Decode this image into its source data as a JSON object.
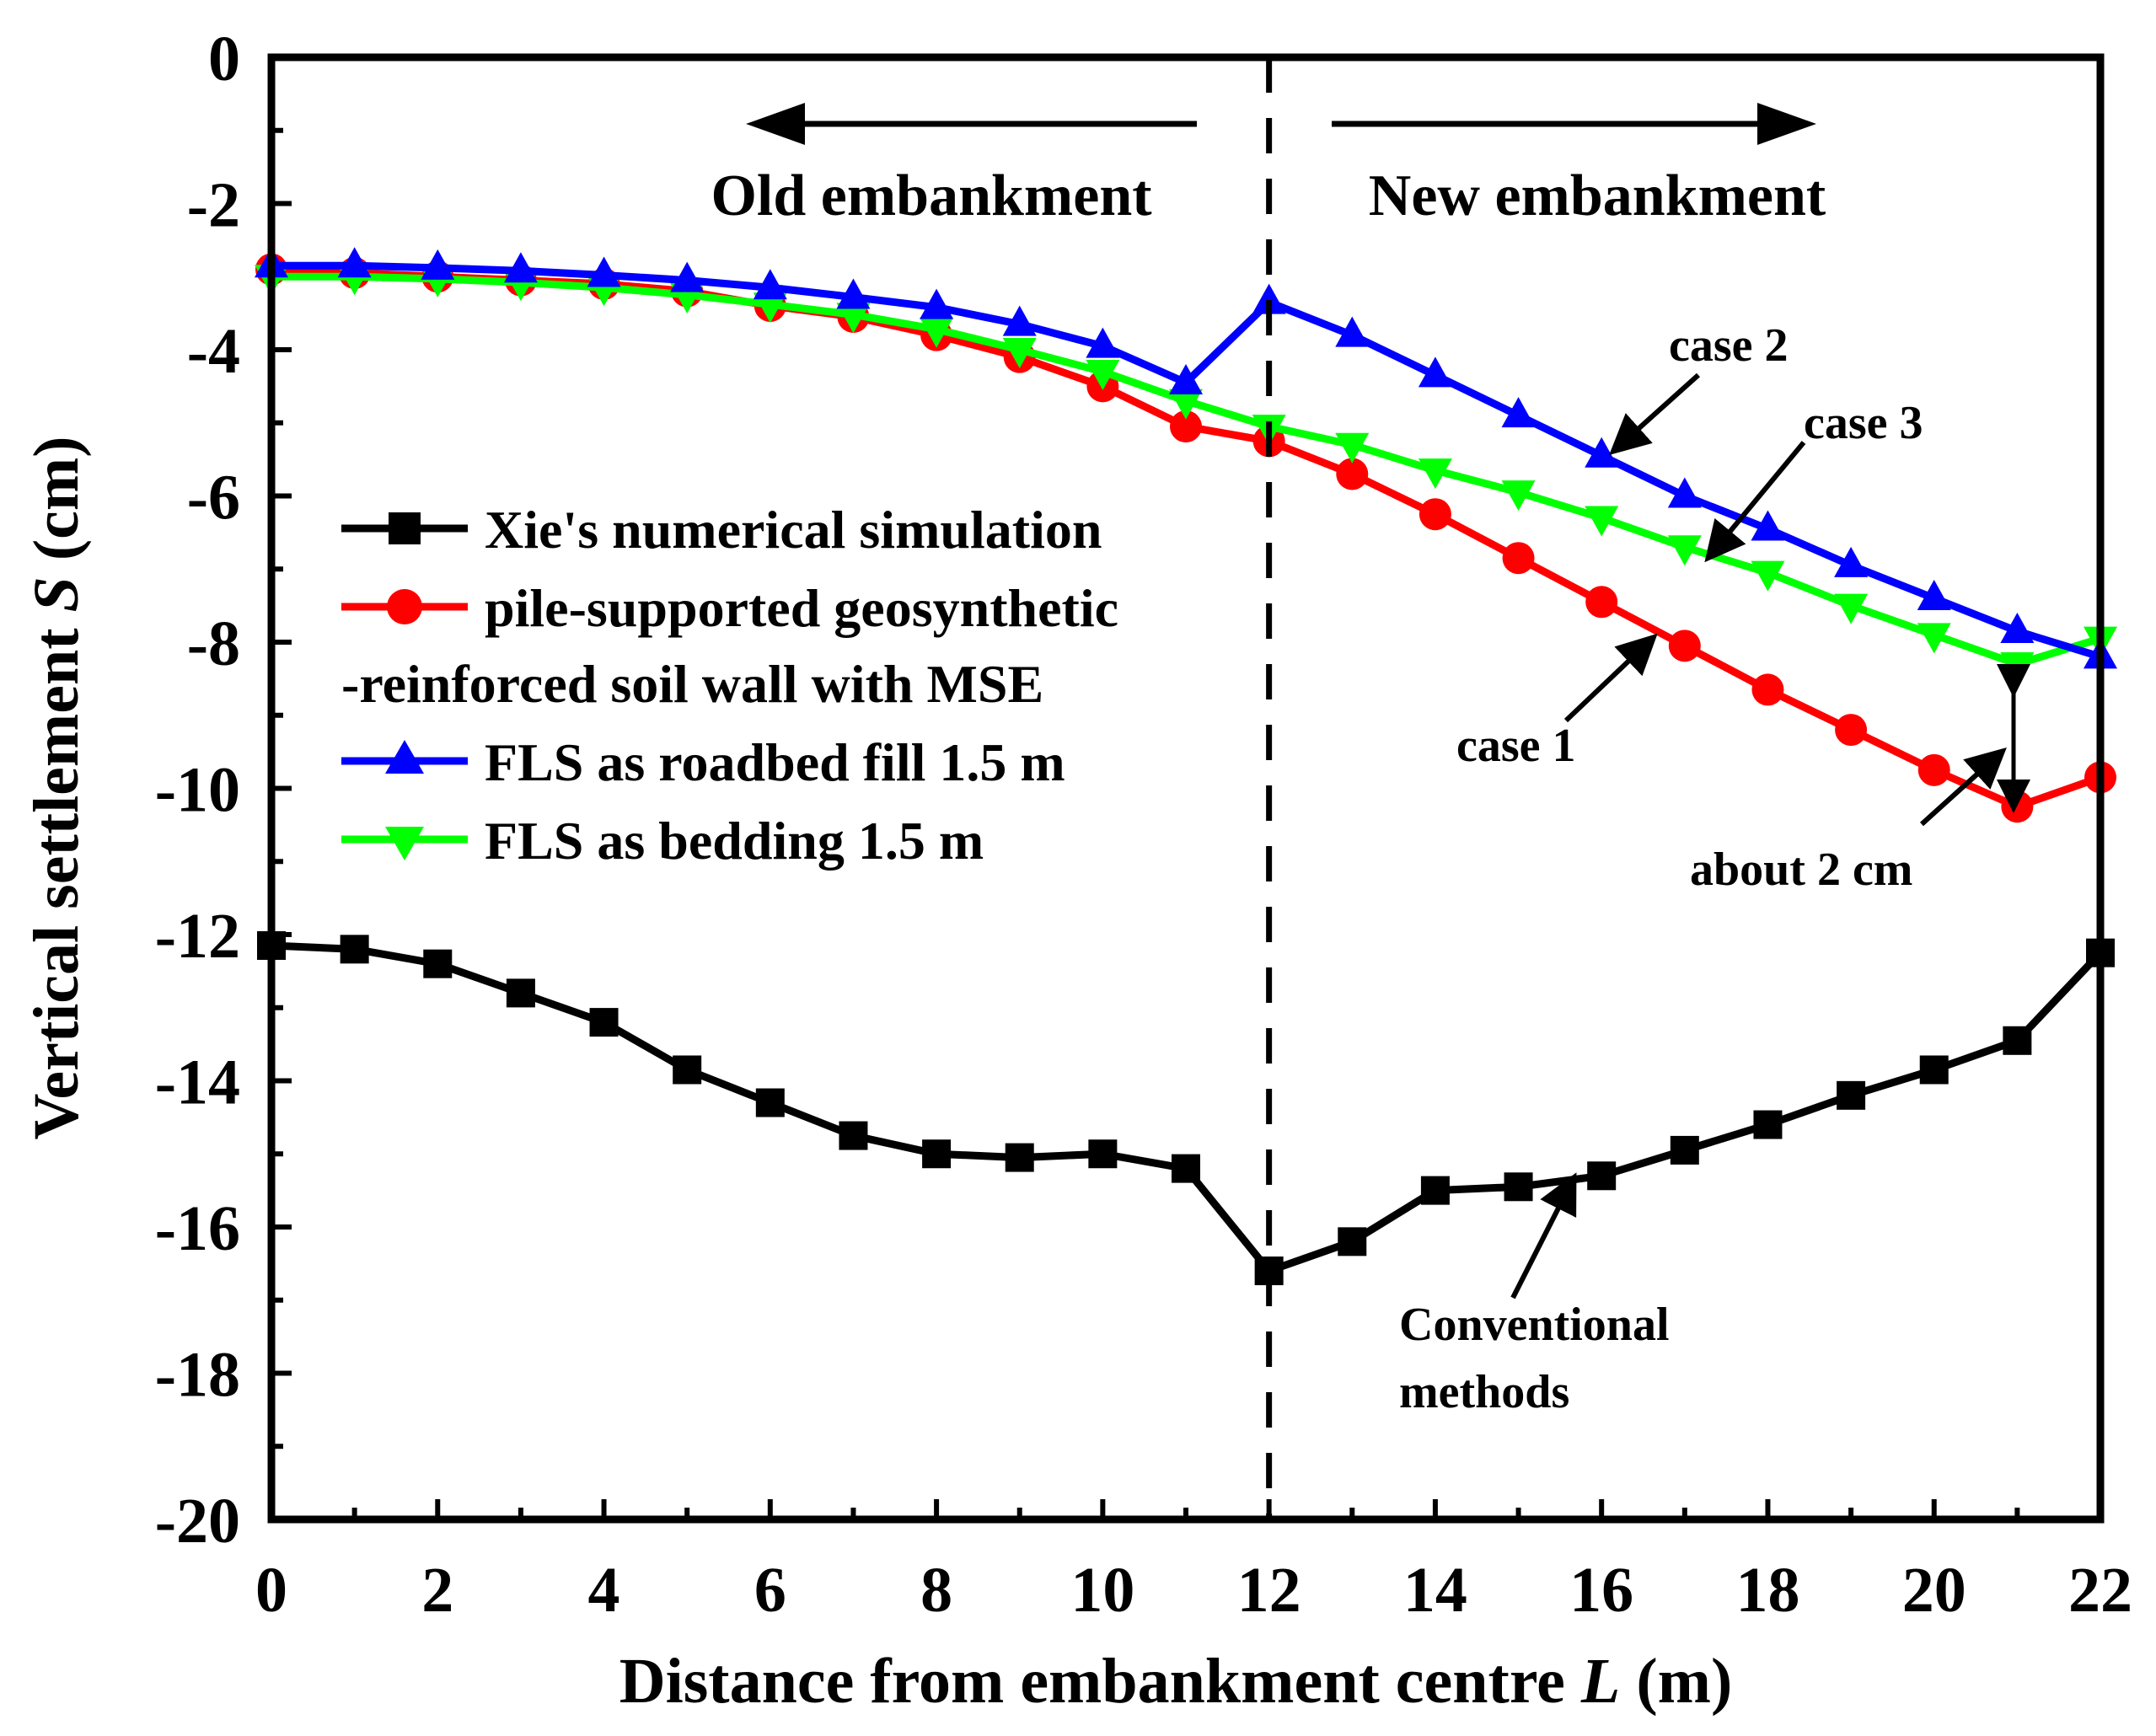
{
  "chart_data": {
    "type": "line",
    "title": "",
    "xlabel": "Distance from embankment centre L (m)",
    "xlabel_parts": {
      "pre": "Distance from embankment centre ",
      "italic": "L",
      "post": " (m)"
    },
    "ylabel": "Vertical settlement S (cm)",
    "ylabel_parts": {
      "pre": "Vertical settlement  ",
      "italic": "S",
      "post": " (cm)"
    },
    "xlim": [
      0,
      22
    ],
    "ylim": [
      -20,
      0
    ],
    "xticks": [
      "0",
      "2",
      "4",
      "6",
      "8",
      "10",
      "12",
      "14",
      "16",
      "18",
      "20",
      "22"
    ],
    "yticks": [
      "0",
      "-2",
      "-4",
      "-6",
      "-8",
      "-10",
      "-12",
      "-14",
      "-16",
      "-18",
      "-20"
    ],
    "x": [
      0,
      1,
      2,
      3,
      4,
      5,
      6,
      7,
      8,
      9,
      10,
      11,
      12,
      13,
      14,
      15,
      16,
      17,
      18,
      19,
      20,
      21,
      22
    ],
    "series": [
      {
        "name": "Xie's numerical simulation",
        "color": "#000000",
        "marker": "square",
        "values": [
          -12.15,
          -12.2,
          -12.4,
          -12.8,
          -13.2,
          -13.85,
          -14.3,
          -14.75,
          -15.0,
          -15.05,
          -15.0,
          -15.2,
          -16.6,
          -16.2,
          -15.5,
          -15.45,
          -15.3,
          -14.95,
          -14.6,
          -14.2,
          -13.85,
          -13.45,
          -12.25
        ]
      },
      {
        "name": "pile-supported geosynthetic",
        "name_line2": "-reinforced soil wall with MSE",
        "color": "#ff0000",
        "marker": "circle",
        "values": [
          -2.9,
          -2.95,
          -3.0,
          -3.05,
          -3.1,
          -3.2,
          -3.4,
          -3.55,
          -3.8,
          -4.1,
          -4.5,
          -5.05,
          -5.25,
          -5.7,
          -6.25,
          -6.85,
          -7.45,
          -8.05,
          -8.65,
          -9.2,
          -9.75,
          -10.25,
          -9.85
        ]
      },
      {
        "name": "FLS as roadbed fill 1.5 m",
        "color": "#0000ff",
        "marker": "triangle-up",
        "values": [
          -2.85,
          -2.85,
          -2.88,
          -2.92,
          -2.98,
          -3.05,
          -3.15,
          -3.28,
          -3.42,
          -3.65,
          -3.95,
          -4.45,
          -3.35,
          -3.8,
          -4.35,
          -4.9,
          -5.45,
          -6.0,
          -6.45,
          -6.95,
          -7.4,
          -7.85,
          -8.2
        ]
      },
      {
        "name": "FLS as bedding 1.5 m",
        "color": "#00ff00",
        "marker": "triangle-down",
        "values": [
          -3.0,
          -3.0,
          -3.03,
          -3.08,
          -3.15,
          -3.25,
          -3.38,
          -3.52,
          -3.72,
          -4.0,
          -4.3,
          -4.7,
          -5.05,
          -5.3,
          -5.65,
          -5.95,
          -6.3,
          -6.7,
          -7.05,
          -7.5,
          -7.9,
          -8.3,
          -7.95
        ]
      }
    ],
    "divider_x": 12,
    "legend_position": "left-middle",
    "region_labels": {
      "left": "Old embankment",
      "right": "New embankment"
    },
    "annotations": {
      "case1": "case 1",
      "case2": "case 2",
      "case3": "case 3",
      "about": "about 2 cm",
      "conventional_line1": "Conventional",
      "conventional_line2": "methods"
    }
  }
}
